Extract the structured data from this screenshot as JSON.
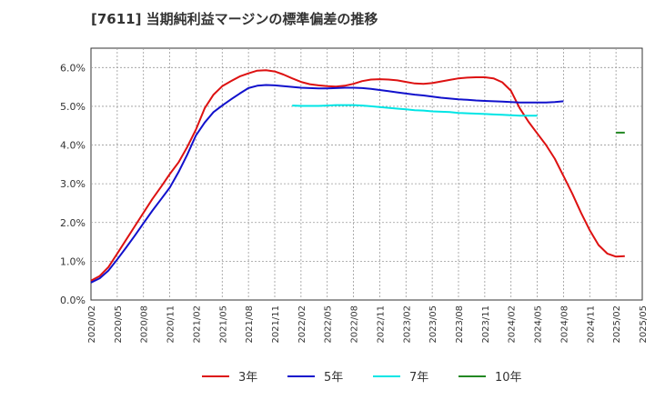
{
  "chart_data": {
    "type": "line",
    "title": "[7611]  当期純利益マージンの標準偏差の推移",
    "xlabel": "",
    "ylabel": "",
    "ylim": [
      0,
      6.5
    ],
    "y_ticks": [
      "0.0%",
      "1.0%",
      "2.0%",
      "3.0%",
      "4.0%",
      "5.0%",
      "6.0%"
    ],
    "x_ticks": [
      "2020/02",
      "2020/05",
      "2020/08",
      "2020/11",
      "2021/02",
      "2021/05",
      "2021/08",
      "2021/11",
      "2022/02",
      "2022/05",
      "2022/08",
      "2022/11",
      "2023/02",
      "2023/05",
      "2023/08",
      "2023/11",
      "2024/02",
      "2024/05",
      "2024/08",
      "2024/11",
      "2025/02",
      "2025/05"
    ],
    "grid": true,
    "legend_position": "bottom",
    "series": [
      {
        "name": "3年",
        "color": "#dd1111",
        "points": [
          [
            0,
            0.5
          ],
          [
            1,
            0.62
          ],
          [
            2,
            0.85
          ],
          [
            3,
            1.2
          ],
          [
            4,
            1.55
          ],
          [
            5,
            1.9
          ],
          [
            6,
            2.25
          ],
          [
            7,
            2.6
          ],
          [
            8,
            2.92
          ],
          [
            9,
            3.25
          ],
          [
            10,
            3.55
          ],
          [
            11,
            3.95
          ],
          [
            12,
            4.4
          ],
          [
            13,
            4.95
          ],
          [
            14,
            5.3
          ],
          [
            15,
            5.52
          ],
          [
            16,
            5.65
          ],
          [
            17,
            5.77
          ],
          [
            18,
            5.85
          ],
          [
            19,
            5.92
          ],
          [
            20,
            5.93
          ],
          [
            21,
            5.9
          ],
          [
            22,
            5.82
          ],
          [
            23,
            5.72
          ],
          [
            24,
            5.63
          ],
          [
            25,
            5.57
          ],
          [
            26,
            5.54
          ],
          [
            27,
            5.52
          ],
          [
            28,
            5.51
          ],
          [
            29,
            5.53
          ],
          [
            30,
            5.58
          ],
          [
            31,
            5.65
          ],
          [
            32,
            5.69
          ],
          [
            33,
            5.7
          ],
          [
            34,
            5.69
          ],
          [
            35,
            5.67
          ],
          [
            36,
            5.63
          ],
          [
            37,
            5.59
          ],
          [
            38,
            5.58
          ],
          [
            39,
            5.6
          ],
          [
            40,
            5.64
          ],
          [
            41,
            5.68
          ],
          [
            42,
            5.72
          ],
          [
            43,
            5.74
          ],
          [
            44,
            5.75
          ],
          [
            45,
            5.75
          ],
          [
            46,
            5.72
          ],
          [
            47,
            5.62
          ],
          [
            48,
            5.4
          ],
          [
            49,
            4.95
          ],
          [
            50,
            4.6
          ],
          [
            51,
            4.3
          ],
          [
            52,
            4.0
          ],
          [
            53,
            3.65
          ],
          [
            54,
            3.2
          ],
          [
            55,
            2.75
          ],
          [
            56,
            2.25
          ],
          [
            57,
            1.8
          ],
          [
            58,
            1.42
          ],
          [
            59,
            1.2
          ],
          [
            60,
            1.12
          ],
          [
            61,
            1.13
          ]
        ]
      },
      {
        "name": "5年",
        "color": "#1111cc",
        "points": [
          [
            0,
            0.45
          ],
          [
            1,
            0.56
          ],
          [
            2,
            0.76
          ],
          [
            3,
            1.05
          ],
          [
            4,
            1.35
          ],
          [
            5,
            1.66
          ],
          [
            6,
            1.98
          ],
          [
            7,
            2.3
          ],
          [
            8,
            2.6
          ],
          [
            9,
            2.9
          ],
          [
            10,
            3.3
          ],
          [
            11,
            3.75
          ],
          [
            12,
            4.25
          ],
          [
            13,
            4.58
          ],
          [
            14,
            4.85
          ],
          [
            15,
            5.02
          ],
          [
            16,
            5.18
          ],
          [
            17,
            5.33
          ],
          [
            18,
            5.47
          ],
          [
            19,
            5.53
          ],
          [
            20,
            5.55
          ],
          [
            21,
            5.54
          ],
          [
            22,
            5.52
          ],
          [
            23,
            5.5
          ],
          [
            24,
            5.48
          ],
          [
            25,
            5.47
          ],
          [
            26,
            5.46
          ],
          [
            27,
            5.46
          ],
          [
            28,
            5.47
          ],
          [
            29,
            5.48
          ],
          [
            30,
            5.48
          ],
          [
            31,
            5.47
          ],
          [
            32,
            5.45
          ],
          [
            33,
            5.42
          ],
          [
            34,
            5.39
          ],
          [
            35,
            5.36
          ],
          [
            36,
            5.33
          ],
          [
            37,
            5.3
          ],
          [
            38,
            5.28
          ],
          [
            39,
            5.25
          ],
          [
            40,
            5.22
          ],
          [
            41,
            5.2
          ],
          [
            42,
            5.18
          ],
          [
            43,
            5.17
          ],
          [
            44,
            5.15
          ],
          [
            45,
            5.14
          ],
          [
            46,
            5.13
          ],
          [
            47,
            5.12
          ],
          [
            48,
            5.11
          ],
          [
            49,
            5.1
          ],
          [
            50,
            5.1
          ],
          [
            51,
            5.1
          ],
          [
            52,
            5.1
          ],
          [
            53,
            5.11
          ],
          [
            54,
            5.13
          ]
        ]
      },
      {
        "name": "7年",
        "color": "#00e5e5",
        "points": [
          [
            23,
            5.02
          ],
          [
            24,
            5.01
          ],
          [
            25,
            5.01
          ],
          [
            26,
            5.01
          ],
          [
            27,
            5.02
          ],
          [
            28,
            5.03
          ],
          [
            29,
            5.03
          ],
          [
            30,
            5.03
          ],
          [
            31,
            5.02
          ],
          [
            32,
            5.0
          ],
          [
            33,
            4.98
          ],
          [
            34,
            4.96
          ],
          [
            35,
            4.94
          ],
          [
            36,
            4.92
          ],
          [
            37,
            4.9
          ],
          [
            38,
            4.89
          ],
          [
            39,
            4.87
          ],
          [
            40,
            4.86
          ],
          [
            41,
            4.85
          ],
          [
            42,
            4.83
          ],
          [
            43,
            4.82
          ],
          [
            44,
            4.81
          ],
          [
            45,
            4.8
          ],
          [
            46,
            4.79
          ],
          [
            47,
            4.78
          ],
          [
            48,
            4.77
          ],
          [
            49,
            4.76
          ],
          [
            50,
            4.76
          ],
          [
            51,
            4.76
          ]
        ]
      },
      {
        "name": "10年",
        "color": "#228822",
        "points": [
          [
            60,
            4.32
          ],
          [
            61,
            4.32
          ]
        ]
      }
    ]
  }
}
